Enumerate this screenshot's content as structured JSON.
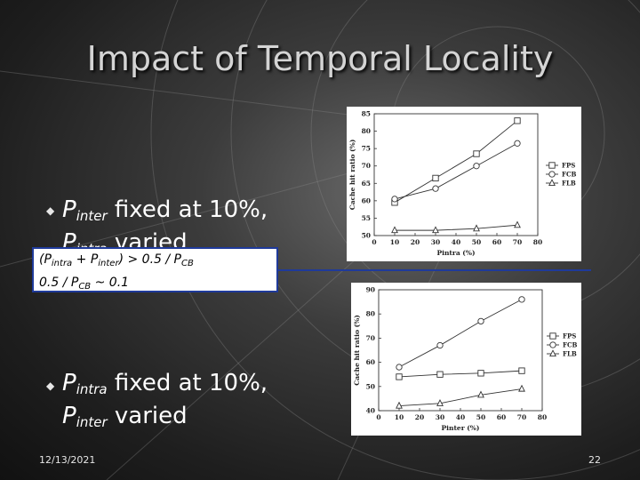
{
  "slide": {
    "title": "Impact of Temporal Locality",
    "bullet1": {
      "p1": "P",
      "s1": "inter",
      "t1": " fixed at 10%,",
      "p2": "P",
      "s2": "intra",
      "t2": " varied"
    },
    "bullet2": {
      "p1": "P",
      "s1": "intra",
      "t1": " fixed at 10%,",
      "p2": "P",
      "s2": "inter",
      "t2": " varied"
    },
    "callout": {
      "l1": {
        "a": "(P",
        "s1": "intra",
        "b": " + P",
        "s2": "inter",
        "c": ") > 0.5 / P",
        "s3": "CB"
      },
      "l2": {
        "a": "0.5 / P",
        "s1": "CB",
        "b": " ~ 0.1"
      }
    },
    "date": "12/13/2021",
    "page_number": "22"
  },
  "chart_data": [
    {
      "type": "line",
      "xlabel": "Pintra (%)",
      "ylabel": "Cache hit ratio (%)",
      "xlim": [
        0,
        80
      ],
      "ylim": [
        50,
        85
      ],
      "xticks": [
        0,
        10,
        20,
        30,
        40,
        50,
        60,
        70,
        80
      ],
      "yticks": [
        50,
        55,
        60,
        65,
        70,
        75,
        80,
        85
      ],
      "x": [
        10,
        30,
        50,
        70
      ],
      "series": [
        {
          "name": "FPS",
          "marker": "square",
          "values": [
            59.5,
            66.5,
            73.5,
            83
          ]
        },
        {
          "name": "FCB",
          "marker": "circle",
          "values": [
            60.5,
            63.5,
            70,
            76.5
          ]
        },
        {
          "name": "FLB",
          "marker": "triangle",
          "values": [
            51.5,
            51.5,
            52,
            53
          ]
        }
      ],
      "legend": "right"
    },
    {
      "type": "line",
      "xlabel": "Pinter (%)",
      "ylabel": "Cache hit ratio (%)",
      "xlim": [
        0,
        80
      ],
      "ylim": [
        40,
        90
      ],
      "xticks": [
        0,
        10,
        20,
        30,
        40,
        50,
        60,
        70,
        80
      ],
      "yticks": [
        40,
        50,
        60,
        70,
        80,
        90
      ],
      "x": [
        10,
        30,
        50,
        70
      ],
      "series": [
        {
          "name": "FPS",
          "marker": "square",
          "values": [
            54,
            55,
            55.5,
            56.5
          ]
        },
        {
          "name": "FCB",
          "marker": "circle",
          "values": [
            58,
            67,
            77,
            86
          ]
        },
        {
          "name": "FLB",
          "marker": "triangle",
          "values": [
            42,
            43,
            46.5,
            49
          ]
        }
      ],
      "legend": "right"
    }
  ]
}
